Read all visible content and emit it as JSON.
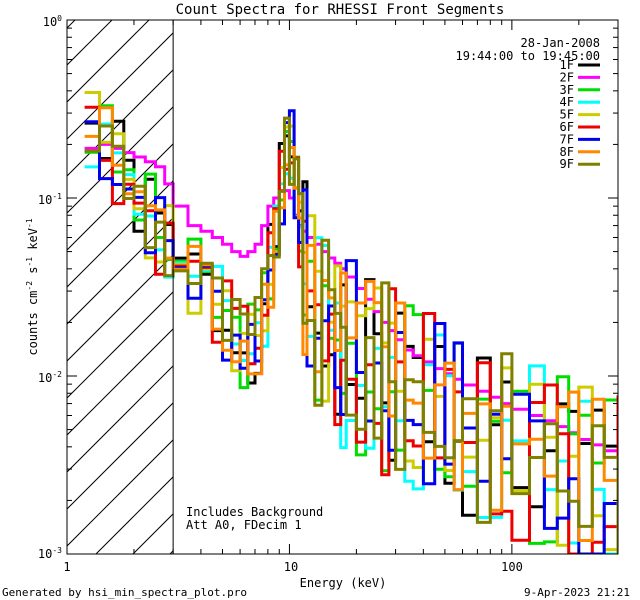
{
  "chart_data": {
    "type": "line",
    "title": "Count Spectra for RHESSI Front Segments",
    "xlabel": "Energy (keV)",
    "ylabel_main": "counts cm",
    "ylabel_exp1": "-2",
    "ylabel_mid": " s",
    "ylabel_exp2": "-1",
    "ylabel_tail": " keV",
    "ylabel_exp3": "-1",
    "xscale": "log",
    "yscale": "log",
    "xlim": [
      1,
      300
    ],
    "ylim": [
      0.001,
      1
    ],
    "x_ticks": [
      {
        "value": 1,
        "label": "1"
      },
      {
        "value": 10,
        "label": "10"
      },
      {
        "value": 100,
        "label": "100"
      }
    ],
    "y_ticks": [
      {
        "value": 1,
        "base": "10",
        "exp": "0"
      },
      {
        "value": 0.1,
        "base": "10",
        "exp": "-1"
      },
      {
        "value": 0.01,
        "base": "10",
        "exp": "-2"
      },
      {
        "value": 0.001,
        "base": "10",
        "exp": "-3"
      }
    ],
    "shaded_region": {
      "x_from": 1,
      "x_to": 3,
      "pattern": "diagonal-hatch"
    },
    "legend_date": "28-Jan-2008",
    "legend_time": "19:44:00 to 19:45:00",
    "annotation_line1": "Includes Background",
    "annotation_line2": "Att A0, FDecim 1",
    "footer_left": "Generated by hsi_min_spectra_plot.pro",
    "footer_right": "9-Apr-2023 21:21",
    "series": [
      {
        "name": "1F",
        "color": "#000000",
        "base": 1.0,
        "seed": 1
      },
      {
        "name": "2F",
        "color": "#ff00ff",
        "base": 1.0,
        "seed": 2
      },
      {
        "name": "3F",
        "color": "#00dd00",
        "base": 1.0,
        "seed": 3
      },
      {
        "name": "4F",
        "color": "#00ffff",
        "base": 1.0,
        "seed": 4
      },
      {
        "name": "5F",
        "color": "#cccc00",
        "base": 1.0,
        "seed": 5
      },
      {
        "name": "6F",
        "color": "#ee0000",
        "base": 1.0,
        "seed": 6
      },
      {
        "name": "7F",
        "color": "#0000ee",
        "base": 1.0,
        "seed": 7
      },
      {
        "name": "8F",
        "color": "#ff8800",
        "base": 1.0,
        "seed": 8
      },
      {
        "name": "9F",
        "color": "#808000",
        "base": 1.0,
        "seed": 9
      }
    ],
    "energy_bins": [
      1.2,
      1.4,
      1.6,
      1.8,
      2.0,
      2.25,
      2.5,
      2.75,
      3.0,
      3.5,
      4.0,
      4.5,
      5.0,
      5.5,
      6.0,
      6.5,
      7.0,
      7.5,
      8.0,
      8.5,
      9.0,
      9.5,
      10.0,
      10.5,
      11.0,
      11.5,
      12.0,
      13,
      14,
      15,
      16,
      17,
      18,
      20,
      22,
      24,
      26,
      28,
      30,
      33,
      36,
      40,
      45,
      50,
      55,
      60,
      70,
      80,
      90,
      100,
      120,
      140,
      160,
      180,
      200,
      230,
      260,
      300
    ],
    "mean_spectrum": [
      0.25,
      0.2,
      0.16,
      0.12,
      0.1,
      0.08,
      0.065,
      0.052,
      0.045,
      0.035,
      0.03,
      0.025,
      0.02,
      0.017,
      0.015,
      0.016,
      0.018,
      0.025,
      0.04,
      0.07,
      0.12,
      0.16,
      0.18,
      0.12,
      0.06,
      0.035,
      0.025,
      0.02,
      0.018,
      0.016,
      0.015,
      0.014,
      0.013,
      0.012,
      0.011,
      0.0105,
      0.0098,
      0.0092,
      0.0088,
      0.0082,
      0.0078,
      0.0072,
      0.0067,
      0.0062,
      0.0058,
      0.0055,
      0.005,
      0.0047,
      0.0044,
      0.0041,
      0.0038,
      0.0035,
      0.0032,
      0.003,
      0.0028,
      0.0026,
      0.0024,
      0.0022
    ],
    "magenta_spectrum": [
      0.19,
      0.2,
      0.19,
      0.18,
      0.17,
      0.16,
      0.15,
      0.12,
      0.09,
      0.07,
      0.065,
      0.06,
      0.055,
      0.05,
      0.047,
      0.05,
      0.055,
      0.07,
      0.09,
      0.1,
      0.11,
      0.11,
      0.1,
      0.08,
      0.07,
      0.065,
      0.06,
      0.055,
      0.05,
      0.046,
      0.043,
      0.04,
      0.036,
      0.031,
      0.027,
      0.023,
      0.02,
      0.018,
      0.016,
      0.014,
      0.013,
      0.012,
      0.011,
      0.0103,
      0.0096,
      0.0089,
      0.0082,
      0.0076,
      0.007,
      0.0065,
      0.006,
      0.0056,
      0.0052,
      0.0048,
      0.0044,
      0.0041,
      0.0038,
      0.0035
    ]
  }
}
